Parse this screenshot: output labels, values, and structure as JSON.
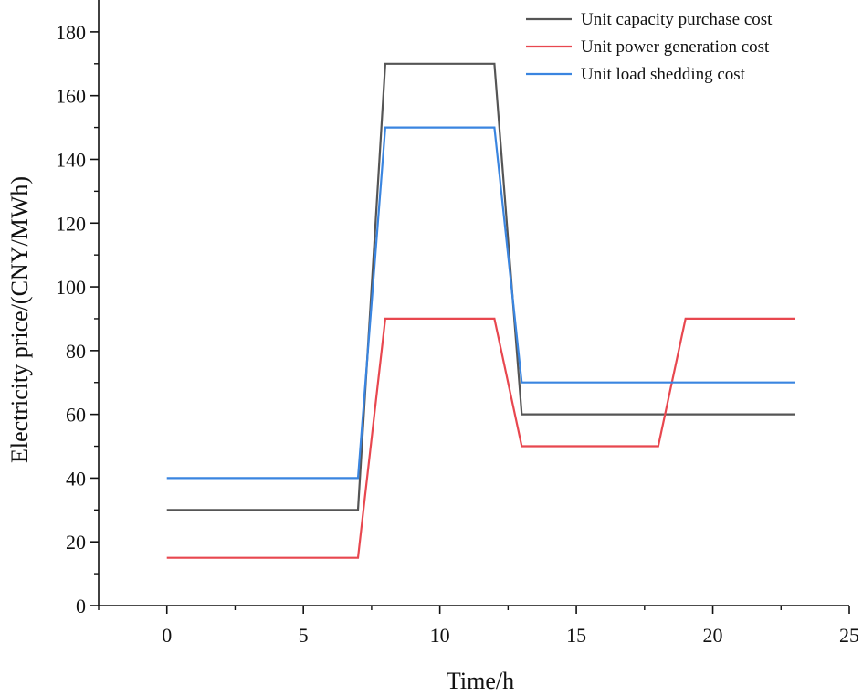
{
  "chart_data": {
    "type": "line",
    "title": "",
    "xlabel": "Time/h",
    "ylabel": "Electricity price/(CNY/MWh)",
    "xlim": [
      -2.5,
      25
    ],
    "ylim": [
      0,
      190
    ],
    "xticks": [
      0,
      5,
      10,
      15,
      20,
      25
    ],
    "yticks": [
      0,
      20,
      40,
      60,
      80,
      100,
      120,
      140,
      160,
      180
    ],
    "grid": false,
    "legend_position": "top-right",
    "series": [
      {
        "name": "Unit capacity purchase cost",
        "color": "#555555",
        "x": [
          0,
          7,
          8,
          12,
          13,
          23
        ],
        "y": [
          30,
          30,
          170,
          170,
          60,
          60
        ]
      },
      {
        "name": "Unit power generation cost",
        "color": "#e8474f",
        "x": [
          0,
          7,
          8,
          12,
          13,
          18,
          19,
          23
        ],
        "y": [
          15,
          15,
          90,
          90,
          50,
          50,
          90,
          90
        ]
      },
      {
        "name": "Unit load shedding cost",
        "color": "#3a85e0",
        "x": [
          0,
          7,
          8,
          12,
          13,
          23
        ],
        "y": [
          40,
          40,
          150,
          150,
          70,
          70
        ]
      }
    ]
  }
}
